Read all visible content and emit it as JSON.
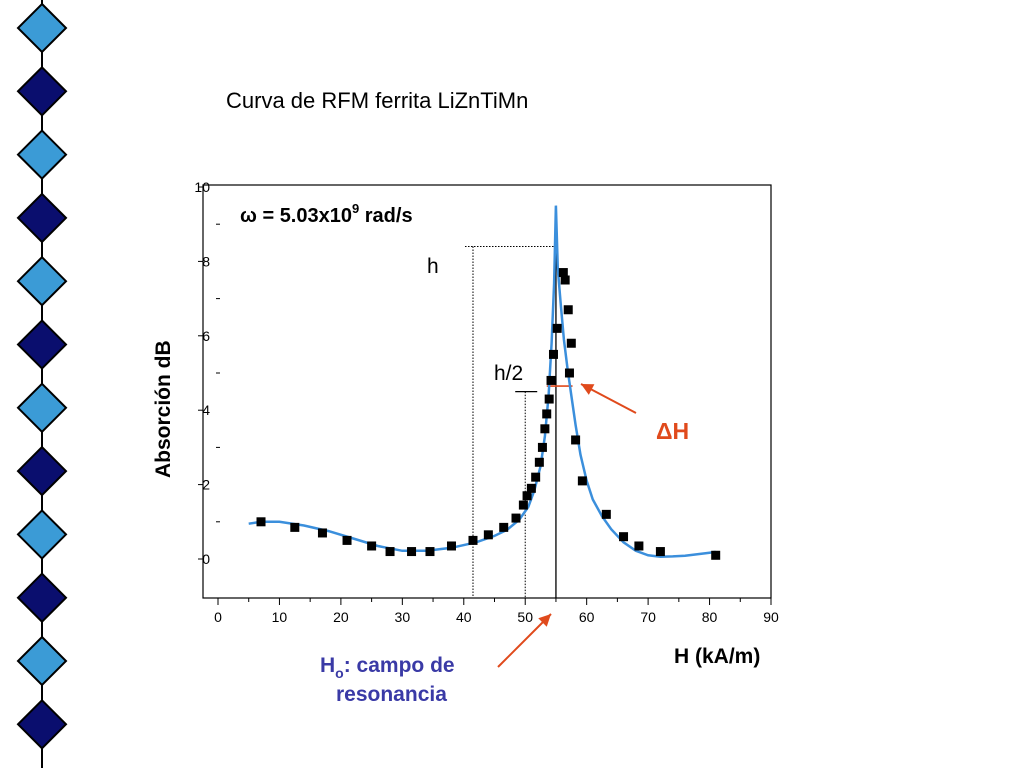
{
  "slide": {
    "title": "Curva de RFM ferrita LiZnTiMn"
  },
  "colors": {
    "diamond_light": "#3b9bd6",
    "diamond_dark": "#0a0e6e",
    "fit_curve": "#3b8fdc",
    "points": "#000000",
    "arrow": "#e04a1c",
    "ho_label": "#3a3aa6",
    "delta_h_label": "#e04a1c"
  },
  "annotations": {
    "omega_prefix": "ω = 5.03x10",
    "omega_exponent": "9",
    "omega_suffix": " rad/s",
    "h": "h",
    "h_half": "h/2",
    "delta_h": "ΔH",
    "ho_symbol": "H",
    "ho_subscript": "o",
    "ho_line1_rest": ": campo de",
    "ho_line2": "resonancia"
  },
  "chart_data": {
    "type": "scatter",
    "xlabel": "H (kA/m)",
    "ylabel": "Absorción dB",
    "xlim": [
      0,
      90
    ],
    "ylim": [
      -1,
      10
    ],
    "xticks": [
      0,
      10,
      20,
      30,
      40,
      50,
      60,
      70,
      80,
      90
    ],
    "yticks": [
      0,
      2,
      4,
      6,
      8,
      10
    ],
    "grid": false,
    "series": [
      {
        "kind": "points",
        "x": [
          7,
          12.5,
          17,
          21,
          25,
          28,
          31.5,
          34.5,
          38,
          41.5,
          44,
          46.5,
          48.5,
          49.7,
          50.3,
          51,
          51.7,
          52.3,
          52.8,
          53.2,
          53.5,
          53.9,
          54.2,
          54.6,
          55.2,
          56.2,
          56.5,
          57,
          57.5,
          57.2,
          58.2,
          59.3,
          63.2,
          66,
          68.5,
          72,
          81
        ],
        "y": [
          1.0,
          0.85,
          0.7,
          0.5,
          0.35,
          0.2,
          0.2,
          0.2,
          0.35,
          0.5,
          0.65,
          0.85,
          1.1,
          1.45,
          1.7,
          1.9,
          2.2,
          2.6,
          3.0,
          3.5,
          3.9,
          4.3,
          4.8,
          5.5,
          6.2,
          7.7,
          7.5,
          6.7,
          5.8,
          5.0,
          3.2,
          2.1,
          1.2,
          0.6,
          0.35,
          0.2,
          0.1
        ]
      },
      {
        "kind": "fit",
        "x": [
          5,
          7,
          10,
          14,
          18,
          22,
          26,
          30,
          34,
          38,
          42,
          45,
          47,
          49,
          50.5,
          51.5,
          52.5,
          53.2,
          53.8,
          54.3,
          54.7,
          55,
          55.3,
          55.8,
          56.3,
          56.9,
          57.5,
          58.2,
          59,
          60,
          61,
          62.5,
          64,
          66,
          68,
          70,
          72,
          74,
          76,
          78,
          80,
          81
        ],
        "y": [
          0.95,
          1.0,
          1.0,
          0.9,
          0.75,
          0.55,
          0.35,
          0.22,
          0.22,
          0.3,
          0.45,
          0.62,
          0.78,
          1.05,
          1.4,
          1.85,
          2.5,
          3.3,
          4.4,
          5.8,
          7.4,
          9.5,
          7.8,
          6.8,
          5.9,
          5.1,
          4.4,
          3.6,
          2.8,
          2.1,
          1.6,
          1.15,
          0.8,
          0.45,
          0.22,
          0.1,
          0.06,
          0.07,
          0.09,
          0.13,
          0.17,
          0.19
        ]
      }
    ],
    "ho_x": 55,
    "peak_y": 8.4,
    "h_ref_x": 41.5,
    "half_x": 50,
    "half_y": 4.5,
    "fwhm_y": 4.65,
    "fwhm_x": [
      53.5,
      57.7
    ]
  }
}
